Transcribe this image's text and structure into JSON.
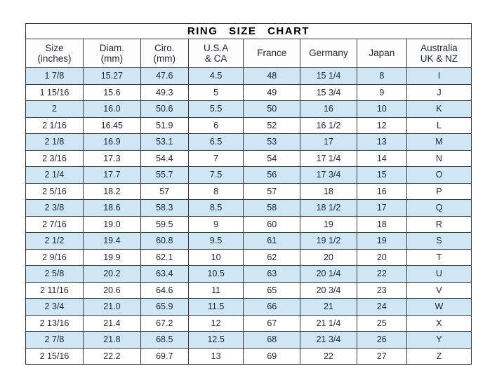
{
  "colors": {
    "row_alt": "#cfe6f5",
    "border": "#3a3a3a",
    "text": "#1d2433",
    "page_background": "#ffffff"
  },
  "chart_data": {
    "type": "table",
    "title": "RING SIZE CHART",
    "columns": [
      {
        "key": "size_inches",
        "label": "Size",
        "sub": "(inches)"
      },
      {
        "key": "diam_mm",
        "label": "Diam.",
        "sub": "(mm)"
      },
      {
        "key": "ciro_mm",
        "label": "Ciro.",
        "sub": "(mm)"
      },
      {
        "key": "usa_ca",
        "label": "U.S.A",
        "sub": "& CA"
      },
      {
        "key": "france",
        "label": "France",
        "sub": ""
      },
      {
        "key": "germany",
        "label": "Germany",
        "sub": ""
      },
      {
        "key": "japan",
        "label": "Japan",
        "sub": ""
      },
      {
        "key": "australia_uk_nz",
        "label": "Australia",
        "sub": "UK & NZ"
      }
    ],
    "rows": [
      [
        "1 7/8",
        "15.27",
        "47.6",
        "4.5",
        "48",
        "15 1/4",
        "8",
        "I"
      ],
      [
        "1 15/16",
        "15.6",
        "49.3",
        "5",
        "49",
        "15 3/4",
        "9",
        "J"
      ],
      [
        "2",
        "16.0",
        "50.6",
        "5.5",
        "50",
        "16",
        "10",
        "K"
      ],
      [
        "2 1/16",
        "16.45",
        "51.9",
        "6",
        "52",
        "16 1/2",
        "12",
        "L"
      ],
      [
        "2 1/8",
        "16.9",
        "53.1",
        "6.5",
        "53",
        "17",
        "13",
        "M"
      ],
      [
        "2 3/16",
        "17.3",
        "54.4",
        "7",
        "54",
        "17 1/4",
        "14",
        "N"
      ],
      [
        "2 1/4",
        "17.7",
        "55.7",
        "7.5",
        "56",
        "17 3/4",
        "15",
        "O"
      ],
      [
        "2 5/16",
        "18.2",
        "57",
        "8",
        "57",
        "18",
        "16",
        "P"
      ],
      [
        "2 3/8",
        "18.6",
        "58.3",
        "8.5",
        "58",
        "18 1/2",
        "17",
        "Q"
      ],
      [
        "2 7/16",
        "19.0",
        "59.5",
        "9",
        "60",
        "19",
        "18",
        "R"
      ],
      [
        "2 1/2",
        "19.4",
        "60.8",
        "9.5",
        "61",
        "19 1/2",
        "19",
        "S"
      ],
      [
        "2 9/16",
        "19.9",
        "62.1",
        "10",
        "62",
        "20",
        "20",
        "T"
      ],
      [
        "2 5/8",
        "20.2",
        "63.4",
        "10.5",
        "63",
        "20 1/4",
        "22",
        "U"
      ],
      [
        "2 11/16",
        "20.6",
        "64.6",
        "11",
        "65",
        "20 3/4",
        "23",
        "V"
      ],
      [
        "2 3/4",
        "21.0",
        "65.9",
        "11.5",
        "66",
        "21",
        "24",
        "W"
      ],
      [
        "2 13/16",
        "21.4",
        "67.2",
        "12",
        "67",
        "21 1/4",
        "25",
        "X"
      ],
      [
        "2 7/8",
        "21.8",
        "68.5",
        "12.5",
        "68",
        "21 3/4",
        "26",
        "Y"
      ],
      [
        "2 15/16",
        "22.2",
        "69.7",
        "13",
        "69",
        "22",
        "27",
        "Z"
      ]
    ]
  }
}
